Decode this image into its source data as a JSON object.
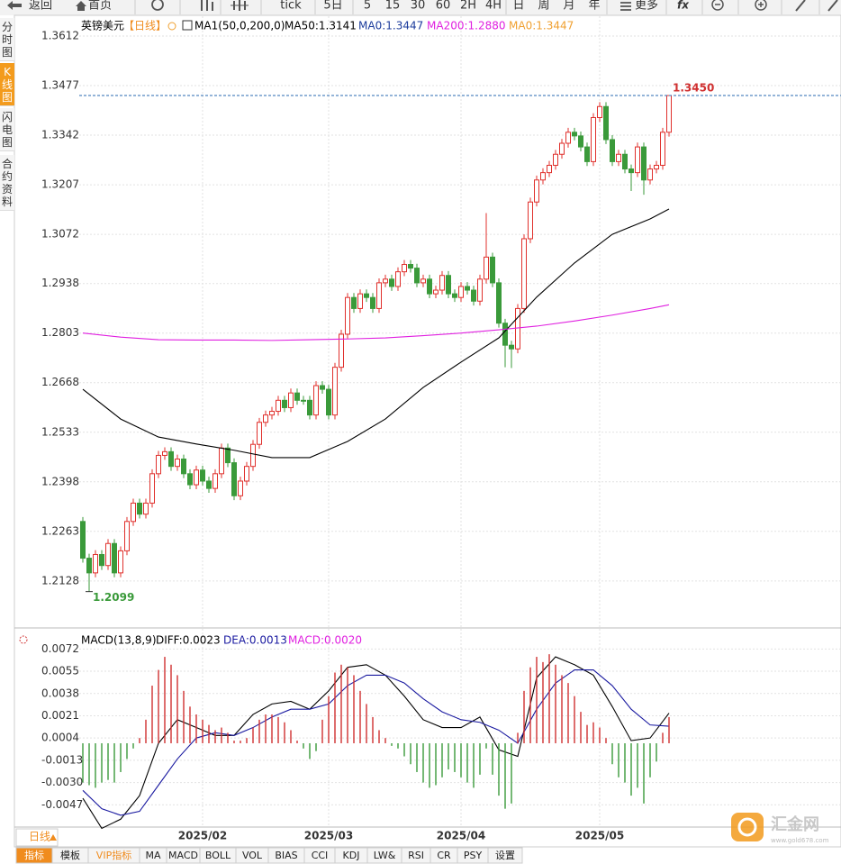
{
  "toolbar": [
    "返回",
    "首页",
    "tick",
    "5日",
    "5",
    "15",
    "30",
    "60",
    "2H",
    "4H",
    "日",
    "周",
    "月",
    "年",
    "更多"
  ],
  "sidebar": [
    "分时图",
    "K线图",
    "闪电图",
    "合约资料"
  ],
  "sidebar_active": 1,
  "period_button": "日线",
  "tabs": [
    "指标",
    "模板",
    "VIP指标",
    "MA",
    "MACD",
    "BOLL",
    "VOL",
    "BIAS",
    "CCI",
    "KDJ",
    "LW&",
    "RSI",
    "CR",
    "PSY",
    "设置"
  ],
  "watermark": {
    "name": "汇金网",
    "url": "www.gold678.com"
  },
  "chart_data": [
    {
      "type": "candlestick",
      "title": "英镑美元",
      "period": "【日线】",
      "indicator": "MA1(50,0,200,0)",
      "open": [
        1.229,
        1.219,
        1.215,
        1.22,
        1.217,
        1.223,
        1.215,
        1.221,
        1.229,
        1.234,
        1.231,
        1.234,
        1.242,
        1.247,
        1.248,
        1.244,
        1.246,
        1.242,
        1.239,
        1.243,
        1.24,
        1.238,
        1.242,
        1.249,
        1.245,
        1.236,
        1.24,
        1.244,
        1.25,
        1.256,
        1.258,
        1.259,
        1.262,
        1.26,
        1.264,
        1.262,
        1.262,
        1.258,
        1.266,
        1.265,
        1.258,
        1.271,
        1.28,
        1.29,
        1.287,
        1.291,
        1.29,
        1.287,
        1.294,
        1.295,
        1.293,
        1.297,
        1.299,
        1.298,
        1.294,
        1.295,
        1.291,
        1.292,
        1.296,
        1.291,
        1.29,
        1.293,
        1.292,
        1.289,
        1.295,
        1.301,
        1.294,
        1.283,
        1.277,
        1.276,
        1.287,
        1.306,
        1.316,
        1.322,
        1.324,
        1.326,
        1.329,
        1.332,
        1.335,
        1.334,
        1.331,
        1.327,
        1.339,
        1.342,
        1.333,
        1.327,
        1.329,
        1.325,
        1.324,
        1.331,
        1.322,
        1.325,
        1.326,
        1.335
      ],
      "high": [
        1.2302,
        1.2202,
        1.2212,
        1.2212,
        1.2242,
        1.2242,
        1.2222,
        1.2302,
        1.2352,
        1.2352,
        1.2352,
        1.2432,
        1.2482,
        1.2492,
        1.2492,
        1.2472,
        1.2472,
        1.2432,
        1.2442,
        1.2442,
        1.2412,
        1.2432,
        1.2502,
        1.2502,
        1.2462,
        1.2412,
        1.2452,
        1.2512,
        1.2572,
        1.2592,
        1.2602,
        1.2632,
        1.2632,
        1.2652,
        1.2652,
        1.2632,
        1.2632,
        1.2672,
        1.2672,
        1.2662,
        1.2722,
        1.2812,
        1.2912,
        1.2912,
        1.2922,
        1.2922,
        1.2912,
        1.2952,
        1.2962,
        1.2962,
        1.2982,
        1.3002,
        1.3002,
        1.2992,
        1.2962,
        1.2962,
        1.2932,
        1.2972,
        1.2972,
        1.2922,
        1.2942,
        1.2942,
        1.2932,
        1.2962,
        1.313,
        1.3022,
        1.2952,
        1.2842,
        1.2782,
        1.2882,
        1.3072,
        1.3172,
        1.3232,
        1.3252,
        1.3272,
        1.3302,
        1.3332,
        1.3362,
        1.3362,
        1.3352,
        1.3322,
        1.3402,
        1.3432,
        1.3432,
        1.3342,
        1.3302,
        1.3302,
        1.3262,
        1.3322,
        1.3322,
        1.3262,
        1.3272,
        1.3362,
        1.345
      ],
      "low": [
        1.2178,
        1.2099,
        1.2138,
        1.2158,
        1.2158,
        1.2138,
        1.2138,
        1.2198,
        1.2278,
        1.2298,
        1.2298,
        1.2328,
        1.2408,
        1.2458,
        1.2428,
        1.2428,
        1.2408,
        1.2378,
        1.2378,
        1.2388,
        1.2368,
        1.2368,
        1.2408,
        1.2438,
        1.2348,
        1.2348,
        1.2388,
        1.2428,
        1.2488,
        1.2548,
        1.2568,
        1.2578,
        1.2588,
        1.2588,
        1.2608,
        1.2608,
        1.2568,
        1.2568,
        1.2638,
        1.2568,
        1.2568,
        1.2698,
        1.2788,
        1.2858,
        1.2858,
        1.2888,
        1.2858,
        1.2858,
        1.2928,
        1.2918,
        1.2918,
        1.2958,
        1.2968,
        1.2928,
        1.2928,
        1.2898,
        1.2898,
        1.2908,
        1.2898,
        1.2888,
        1.2888,
        1.2908,
        1.2878,
        1.2878,
        1.2938,
        1.2928,
        1.2818,
        1.271,
        1.2708,
        1.2748,
        1.2858,
        1.3048,
        1.3148,
        1.3208,
        1.3228,
        1.3248,
        1.3278,
        1.3308,
        1.3328,
        1.3298,
        1.3258,
        1.3258,
        1.3378,
        1.3318,
        1.3258,
        1.3258,
        1.3238,
        1.319,
        1.3228,
        1.318,
        1.3208,
        1.3238,
        1.3248,
        1.3338
      ],
      "close": [
        1.219,
        1.215,
        1.22,
        1.217,
        1.223,
        1.215,
        1.221,
        1.229,
        1.234,
        1.231,
        1.234,
        1.242,
        1.247,
        1.248,
        1.244,
        1.246,
        1.242,
        1.239,
        1.243,
        1.24,
        1.238,
        1.242,
        1.249,
        1.245,
        1.236,
        1.24,
        1.244,
        1.25,
        1.256,
        1.258,
        1.259,
        1.262,
        1.26,
        1.264,
        1.262,
        1.262,
        1.258,
        1.266,
        1.265,
        1.258,
        1.271,
        1.28,
        1.29,
        1.287,
        1.291,
        1.29,
        1.287,
        1.294,
        1.295,
        1.293,
        1.297,
        1.299,
        1.298,
        1.294,
        1.295,
        1.291,
        1.292,
        1.296,
        1.291,
        1.29,
        1.293,
        1.292,
        1.289,
        1.295,
        1.301,
        1.294,
        1.283,
        1.277,
        1.276,
        1.287,
        1.306,
        1.316,
        1.322,
        1.324,
        1.326,
        1.329,
        1.332,
        1.335,
        1.334,
        1.331,
        1.327,
        1.339,
        1.342,
        1.333,
        1.327,
        1.329,
        1.325,
        1.324,
        1.331,
        1.322,
        1.325,
        1.326,
        1.335,
        1.345
      ],
      "up_color": "#e0302c",
      "down_color": "#3a9a3a",
      "series": [
        {
          "name": "MA50:1.3141",
          "color": "#000000",
          "x": [
            0,
            6,
            12,
            18,
            24,
            30,
            36,
            42,
            48,
            54,
            60,
            66,
            72,
            78,
            84,
            90,
            93
          ],
          "values": [
            1.265,
            1.2569,
            1.252,
            1.2501,
            1.2484,
            1.2464,
            1.2464,
            1.2508,
            1.2569,
            1.2655,
            1.2724,
            1.279,
            1.2901,
            1.2994,
            1.3072,
            1.3114,
            1.3141
          ]
        },
        {
          "name": "MA200:1.2880",
          "color": "#e020e0",
          "x": [
            0,
            6,
            12,
            18,
            24,
            30,
            36,
            42,
            48,
            54,
            60,
            66,
            72,
            78,
            84,
            90,
            93
          ],
          "values": [
            1.2803,
            1.2792,
            1.2785,
            1.2784,
            1.2784,
            1.2783,
            1.2785,
            1.2787,
            1.279,
            1.2796,
            1.2803,
            1.2812,
            1.2822,
            1.2836,
            1.2852,
            1.287,
            1.288
          ]
        }
      ],
      "extra_labels": [
        {
          "text": "MA0:1.3447",
          "color": "#1c3c9c"
        },
        {
          "text": "MA0:1.3447",
          "color": "#f0a030"
        }
      ],
      "ylim": [
        1.2,
        1.3666
      ],
      "yticks": [
        1.3612,
        1.3477,
        1.3342,
        1.3207,
        1.3072,
        1.2938,
        1.2803,
        1.2668,
        1.2533,
        1.2398,
        1.2263,
        1.2128
      ],
      "date_ticks": [
        {
          "index": 19,
          "label": "2025/02"
        },
        {
          "index": 39,
          "label": "2025/03"
        },
        {
          "index": 60,
          "label": "2025/04"
        },
        {
          "index": 82,
          "label": "2025/05"
        }
      ],
      "high_mark": {
        "index": 93,
        "value": 1.345,
        "label": "1.3450"
      },
      "low_mark": {
        "index": 1,
        "value": 1.2099,
        "label": "1.2099"
      }
    },
    {
      "type": "macd",
      "title": "MACD(13,8,9)",
      "series": [
        {
          "name": "DIFF:0.0023",
          "color": "#000000",
          "x": [
            0,
            3,
            6,
            9,
            12,
            15,
            18,
            21,
            24,
            27,
            30,
            33,
            36,
            39,
            42,
            45,
            48,
            51,
            54,
            57,
            60,
            63,
            66,
            69,
            72,
            75,
            78,
            81,
            84,
            87,
            90,
            93
          ],
          "values": [
            -0.0042,
            -0.0065,
            -0.0058,
            -0.004,
            0.0,
            0.0018,
            0.0012,
            0.0006,
            0.0006,
            0.0022,
            0.003,
            0.0032,
            0.0026,
            0.004,
            0.0058,
            0.006,
            0.0052,
            0.0036,
            0.0018,
            0.0012,
            0.0012,
            0.002,
            -0.0005,
            -0.001,
            0.005,
            0.0066,
            0.006,
            0.0052,
            0.0028,
            0.0002,
            0.0004,
            0.0023
          ]
        },
        {
          "name": "DEA:0.0013",
          "color": "#1a1aa0",
          "x": [
            0,
            3,
            6,
            9,
            12,
            15,
            18,
            21,
            24,
            27,
            30,
            33,
            36,
            39,
            42,
            45,
            48,
            51,
            54,
            57,
            60,
            63,
            66,
            69,
            72,
            75,
            78,
            81,
            84,
            87,
            90,
            93
          ],
          "values": [
            -0.0036,
            -0.005,
            -0.0055,
            -0.0052,
            -0.0032,
            -0.0012,
            0.0004,
            0.0008,
            0.0006,
            0.0012,
            0.002,
            0.0026,
            0.0026,
            0.003,
            0.0044,
            0.0052,
            0.0052,
            0.0046,
            0.0034,
            0.0024,
            0.0018,
            0.0016,
            0.001,
            0.0,
            0.0026,
            0.0046,
            0.0056,
            0.0056,
            0.0044,
            0.0026,
            0.0014,
            0.0013
          ]
        },
        {
          "name": "MACD:0.0020",
          "color": "#e020e0",
          "kind": "histogram",
          "values": [
            -0.003,
            -0.0032,
            -0.0034,
            -0.003,
            -0.0028,
            -0.003,
            -0.0022,
            -0.0012,
            -0.0004,
            0.0004,
            0.0018,
            0.0044,
            0.0056,
            0.0066,
            0.006,
            0.0052,
            0.004,
            0.0028,
            0.0022,
            0.0018,
            0.0014,
            0.001,
            0.0012,
            0.0008,
            0.0002,
            0.0002,
            0.0004,
            0.0012,
            0.0018,
            0.0022,
            0.0022,
            0.002,
            0.0016,
            0.001,
            0.0002,
            -0.0004,
            -0.0012,
            -0.0006,
            0.0018,
            0.0036,
            0.0054,
            0.006,
            0.0058,
            0.0052,
            0.004,
            0.003,
            0.002,
            0.001,
            0.0004,
            -0.0002,
            -0.0004,
            -0.001,
            -0.0016,
            -0.0022,
            -0.003,
            -0.0034,
            -0.0032,
            -0.0026,
            -0.002,
            -0.0022,
            -0.0026,
            -0.003,
            -0.0034,
            -0.0024,
            -0.0004,
            -0.0024,
            -0.004,
            -0.005,
            -0.0046,
            0.0008,
            0.004,
            0.0058,
            0.0066,
            0.0062,
            0.0068,
            0.006,
            0.0052,
            0.0046,
            0.0036,
            0.0024,
            0.0014,
            0.0016,
            0.0012,
            0.0004,
            -0.0016,
            -0.0026,
            -0.003,
            -0.004,
            -0.0034,
            -0.0046,
            -0.0026,
            -0.0014,
            0.0008,
            0.002
          ]
        }
      ],
      "up_color": "#d03030",
      "down_color": "#3a9a3a",
      "ylim": [
        -0.0064,
        0.0086
      ],
      "yticks": [
        0.0072,
        0.0055,
        0.0038,
        0.0021,
        0.0004,
        -0.0013,
        {
          "value": -0.003,
          "label": "-0.0030"
        },
        -0.0047
      ]
    }
  ]
}
